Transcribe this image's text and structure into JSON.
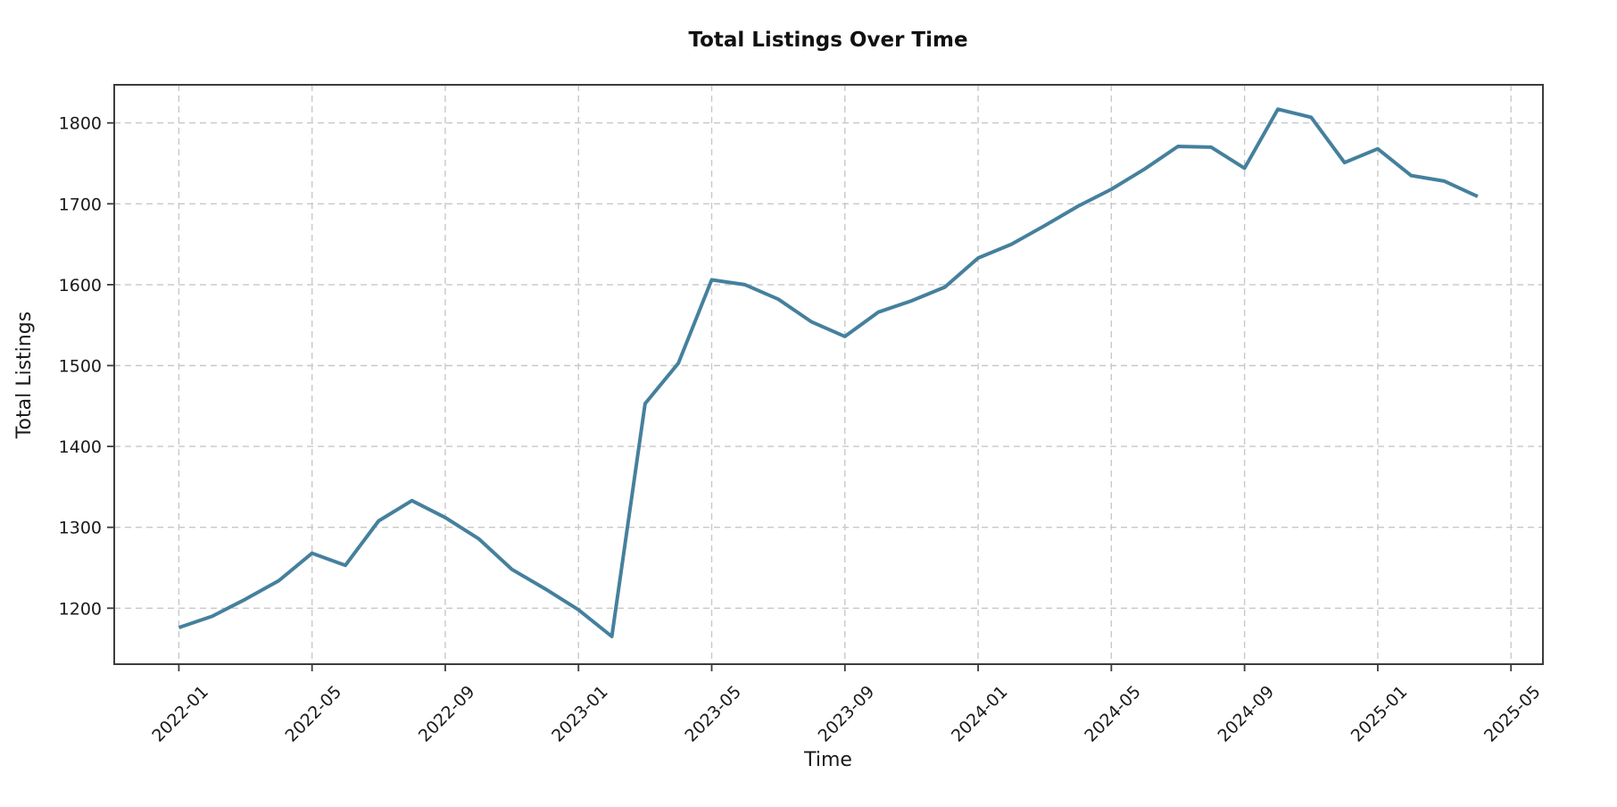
{
  "figure": {
    "background": "#ffffff"
  },
  "chart_data": {
    "type": "line",
    "title": "Total Listings Over Time",
    "xlabel": "Time",
    "ylabel": "Total Listings",
    "x": [
      "2022-01",
      "2022-02",
      "2022-03",
      "2022-04",
      "2022-05",
      "2022-06",
      "2022-07",
      "2022-08",
      "2022-09",
      "2022-10",
      "2022-11",
      "2022-12",
      "2023-01",
      "2023-02",
      "2023-03",
      "2023-04",
      "2023-05",
      "2023-06",
      "2023-07",
      "2023-08",
      "2023-09",
      "2023-10",
      "2023-11",
      "2023-12",
      "2024-01",
      "2024-02",
      "2024-03",
      "2024-04",
      "2024-05",
      "2024-06",
      "2024-07",
      "2024-08",
      "2024-09",
      "2024-10",
      "2024-11",
      "2024-12",
      "2025-01",
      "2025-02",
      "2025-03",
      "2025-04"
    ],
    "series": [
      {
        "name": "Total Listings",
        "values": [
          1176,
          1190,
          1211,
          1234,
          1268,
          1253,
          1308,
          1333,
          1312,
          1286,
          1248,
          1224,
          1198,
          1165,
          1453,
          1503,
          1606,
          1600,
          1582,
          1554,
          1536,
          1566,
          1580,
          1597,
          1633,
          1650,
          1673,
          1697,
          1718,
          1743,
          1771,
          1770,
          1744,
          1817,
          1807,
          1751,
          1768,
          1735,
          1728,
          1709
        ]
      }
    ],
    "x_tick_labels": [
      "2022-01",
      "2022-05",
      "2022-09",
      "2023-01",
      "2023-05",
      "2023-09",
      "2024-01",
      "2024-05",
      "2024-09",
      "2025-01",
      "2025-05"
    ],
    "x_tick_every_n_months": 4,
    "y_tick_labels": [
      "1200",
      "1300",
      "1400",
      "1500",
      "1600",
      "1700",
      "1800"
    ],
    "y_ticks": [
      1200,
      1300,
      1400,
      1500,
      1600,
      1700,
      1800
    ],
    "ylim": [
      1131,
      1847
    ],
    "xlim_months": [
      -1.95,
      40.95
    ],
    "grid": "both-dashed",
    "legend_position": "none",
    "colors": {
      "line": "#45809d",
      "grid": "#c8c8c8",
      "spine": "#3c3c3c",
      "text": "#1a1a1a"
    }
  }
}
